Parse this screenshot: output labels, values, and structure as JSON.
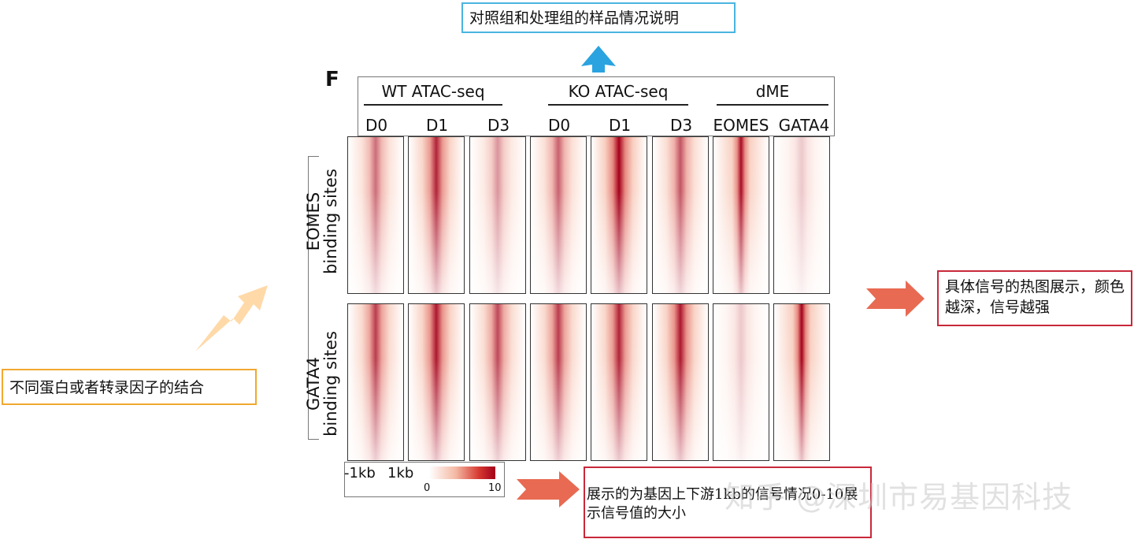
{
  "notes": {
    "top": "对照组和处理组的样品情况说明",
    "left": "不同蛋白或者转录因子的结合",
    "right": "具体信号的热图展示，颜色越深，信号越强",
    "bottom": "展示的为基因上下游1kb的信号情况0-10展示信号值的大小"
  },
  "figure": {
    "panel_letter": "F",
    "groups": [
      "WT ATAC-seq",
      "KO ATAC-seq",
      "dME"
    ],
    "columns": [
      "D0",
      "D1",
      "D3",
      "D0",
      "D1",
      "D3",
      "EOMES",
      "GATA4"
    ],
    "rows": [
      {
        "line1": "EOMES",
        "line2": "binding sites"
      },
      {
        "line1": "GATA4",
        "line2": "binding sites"
      }
    ],
    "legend": {
      "left_label": "-1kb",
      "right_label": "1kb",
      "min": "0",
      "max": "10",
      "color_low": "#ffffff",
      "color_high": "#a3001a"
    },
    "intensity": [
      [
        0.55,
        0.85,
        0.4,
        0.6,
        1.0,
        0.65,
        0.95,
        0.2
      ],
      [
        0.75,
        0.9,
        0.7,
        0.75,
        0.85,
        0.9,
        0.2,
        1.0
      ]
    ]
  },
  "colors": {
    "top_note_border": "#4bb4e0",
    "left_note_border": "#f0a830",
    "red_note_border": "#c8283a",
    "up_arrow": "#2aa3e0",
    "left_arrow": "#ffd9a8",
    "red_arrow": "#e86a52"
  },
  "watermark": "知乎 @深圳市易基因科技"
}
